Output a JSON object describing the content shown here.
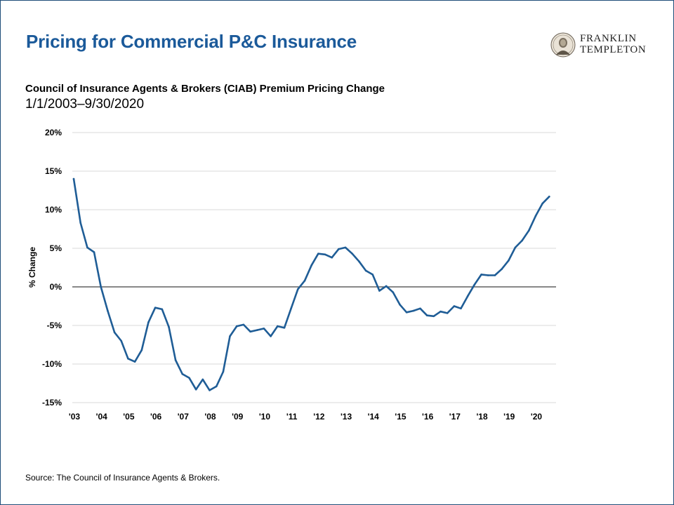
{
  "header": {
    "title": "Pricing for Commercial P&C Insurance",
    "logo_line1": "FRANKLIN",
    "logo_line2": "TEMPLETON"
  },
  "subtitle": "Council of Insurance Agents & Brokers (CIAB) Premium Pricing Change",
  "date_range": "1/1/2003–9/30/2020",
  "source": "Source: The Council of Insurance Agents & Brokers.",
  "colors": {
    "title": "#1b5a9a",
    "line": "#1f5d96",
    "grid": "#d9d9d9",
    "zero_line": "#404040",
    "frame": "#1f4e79"
  },
  "chart_data": {
    "type": "line",
    "title": "Council of Insurance Agents & Brokers (CIAB) Premium Pricing Change",
    "xlabel": "",
    "ylabel": "% Change",
    "ylim": [
      -15,
      20
    ],
    "xlim": [
      2003.0,
      2020.75
    ],
    "y_ticks": [
      20,
      15,
      10,
      5,
      0,
      -5,
      -10,
      -15
    ],
    "y_tick_labels": [
      "20%",
      "15%",
      "10%",
      "5%",
      "0%",
      "-5%",
      "-10%",
      "-15%"
    ],
    "x_ticks": [
      2003,
      2004,
      2005,
      2006,
      2007,
      2008,
      2009,
      2010,
      2011,
      2012,
      2013,
      2014,
      2015,
      2016,
      2017,
      2018,
      2019,
      2020
    ],
    "x_tick_labels": [
      "'03",
      "'04",
      "'05",
      "'06",
      "'07",
      "'08",
      "'09",
      "'10",
      "'11",
      "'12",
      "'13",
      "'14",
      "'15",
      "'16",
      "'17",
      "'18",
      "'19",
      "'20"
    ],
    "grid": true,
    "legend": "none",
    "series": [
      {
        "x": [
          2003.0,
          2003.25,
          2003.5,
          2003.75,
          2004.0,
          2004.25,
          2004.5,
          2004.75,
          2005.0,
          2005.25,
          2005.5,
          2005.75,
          2006.0,
          2006.25,
          2006.5,
          2006.75,
          2007.0,
          2007.25,
          2007.5,
          2007.75,
          2008.0,
          2008.25,
          2008.5,
          2008.75,
          2009.0,
          2009.25,
          2009.5,
          2009.75,
          2010.0,
          2010.25,
          2010.5,
          2010.75,
          2011.0,
          2011.25,
          2011.5,
          2011.75,
          2012.0,
          2012.25,
          2012.5,
          2012.75,
          2013.0,
          2013.25,
          2013.5,
          2013.75,
          2014.0,
          2014.25,
          2014.5,
          2014.75,
          2015.0,
          2015.25,
          2015.5,
          2015.75,
          2016.0,
          2016.25,
          2016.5,
          2016.75,
          2017.0,
          2017.25,
          2017.5,
          2017.75,
          2018.0,
          2018.25,
          2018.5,
          2018.75,
          2019.0,
          2019.25,
          2019.5,
          2019.75,
          2020.0,
          2020.25,
          2020.5
        ],
        "y": [
          14.0,
          8.3,
          5.1,
          4.5,
          0.0,
          -3.1,
          -5.9,
          -7.0,
          -9.3,
          -9.7,
          -8.2,
          -4.6,
          -2.7,
          -2.9,
          -5.2,
          -9.5,
          -11.3,
          -11.8,
          -13.3,
          -12.0,
          -13.4,
          -12.9,
          -11.0,
          -6.4,
          -5.1,
          -4.9,
          -5.8,
          -5.6,
          -5.4,
          -6.4,
          -5.1,
          -5.3,
          -2.8,
          -0.3,
          0.8,
          2.8,
          4.3,
          4.2,
          3.8,
          4.9,
          5.1,
          4.3,
          3.3,
          2.1,
          1.6,
          -0.5,
          0.1,
          -0.7,
          -2.3,
          -3.3,
          -3.1,
          -2.8,
          -3.7,
          -3.8,
          -3.2,
          -3.4,
          -2.5,
          -2.8,
          -1.2,
          0.3,
          1.6,
          1.5,
          1.5,
          2.3,
          3.4,
          5.1,
          6.0,
          7.3,
          9.2,
          10.8,
          11.7
        ]
      }
    ]
  }
}
